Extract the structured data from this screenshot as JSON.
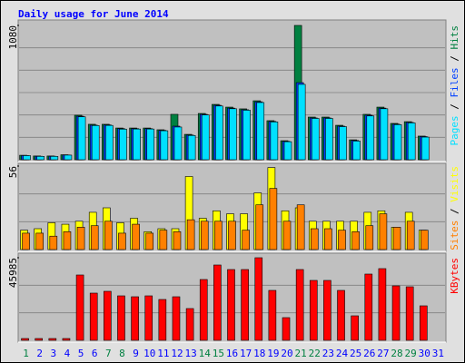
{
  "chart_data": [
    {
      "type": "bar",
      "title": "Daily usage for June 2014",
      "categories": [
        "1",
        "2",
        "3",
        "4",
        "5",
        "6",
        "7",
        "8",
        "9",
        "10",
        "11",
        "12",
        "13",
        "14",
        "15",
        "16",
        "17",
        "18",
        "19",
        "20",
        "21",
        "22",
        "23",
        "24",
        "25",
        "26",
        "27",
        "28",
        "29",
        "30",
        "31"
      ],
      "category_colors": [
        "#008040",
        "#0000ff",
        "#0000ff",
        "#0000ff",
        "#0000ff",
        "#0000ff",
        "#008040",
        "#008040",
        "#0000ff",
        "#0000ff",
        "#0000ff",
        "#0000ff",
        "#0000ff",
        "#008040",
        "#008040",
        "#0000ff",
        "#0000ff",
        "#0000ff",
        "#0000ff",
        "#0000ff",
        "#008040",
        "#008040",
        "#0000ff",
        "#0000ff",
        "#0000ff",
        "#0000ff",
        "#0000ff",
        "#008040",
        "#008040",
        "#0000ff",
        "#0000ff"
      ],
      "series": [
        {
          "name": "Hits",
          "color": "#008040",
          "values": [
            36,
            30,
            30,
            40,
            358,
            285,
            285,
            255,
            255,
            255,
            241,
            365,
            204,
            372,
            445,
            423,
            409,
            474,
            314,
            153,
            1080,
            343,
            343,
            277,
            160,
            365,
            423,
            292,
            306,
            190,
            0
          ]
        },
        {
          "name": "Files",
          "color": "#0040ff",
          "values": [
            34,
            28,
            28,
            38,
            350,
            278,
            280,
            250,
            250,
            250,
            236,
            270,
            198,
            365,
            438,
            415,
            402,
            466,
            308,
            148,
            620,
            336,
            336,
            270,
            155,
            358,
            415,
            286,
            300,
            186,
            0
          ]
        },
        {
          "name": "Pages",
          "color": "#00e0ff",
          "values": [
            33,
            27,
            27,
            37,
            345,
            275,
            276,
            246,
            247,
            247,
            233,
            263,
            195,
            360,
            432,
            410,
            398,
            460,
            304,
            145,
            606,
            332,
            332,
            266,
            150,
            352,
            410,
            282,
            296,
            182,
            0
          ]
        }
      ],
      "ylim": [
        0,
        1080
      ],
      "yticks": [
        1080
      ]
    },
    {
      "type": "bar",
      "series": [
        {
          "name": "Visits",
          "color": "#ffff00",
          "values": [
            13,
            14,
            18,
            17,
            19,
            25,
            28,
            18,
            21,
            12,
            14,
            14,
            49,
            21,
            26,
            24,
            24,
            38,
            55,
            26,
            28,
            19,
            19,
            19,
            19,
            25,
            26,
            15,
            25,
            13,
            0
          ]
        },
        {
          "name": "Sites",
          "color": "#ff8000",
          "values": [
            11,
            11,
            9,
            12,
            15,
            16,
            19,
            11,
            17,
            11,
            13,
            12,
            20,
            19,
            19,
            19,
            13,
            30,
            41,
            19,
            30,
            14,
            14,
            13,
            12,
            16,
            24,
            15,
            19,
            13,
            0
          ]
        }
      ],
      "ylim": [
        0,
        56
      ],
      "yticks": [
        56
      ]
    },
    {
      "type": "bar",
      "series": [
        {
          "name": "KBytes",
          "color": "#ff0000",
          "values": [
            1000,
            1000,
            1000,
            1000,
            36385,
            26277,
            27288,
            24761,
            24256,
            24761,
            22740,
            24256,
            17687,
            33858,
            41942,
            39415,
            39415,
            45985,
            27794,
            12633,
            39415,
            33352,
            33352,
            27794,
            13644,
            36890,
            39921,
            30320,
            29815,
            19202,
            0
          ]
        }
      ],
      "ylim": [
        0,
        45985
      ],
      "yticks": [
        45985
      ]
    }
  ]
}
